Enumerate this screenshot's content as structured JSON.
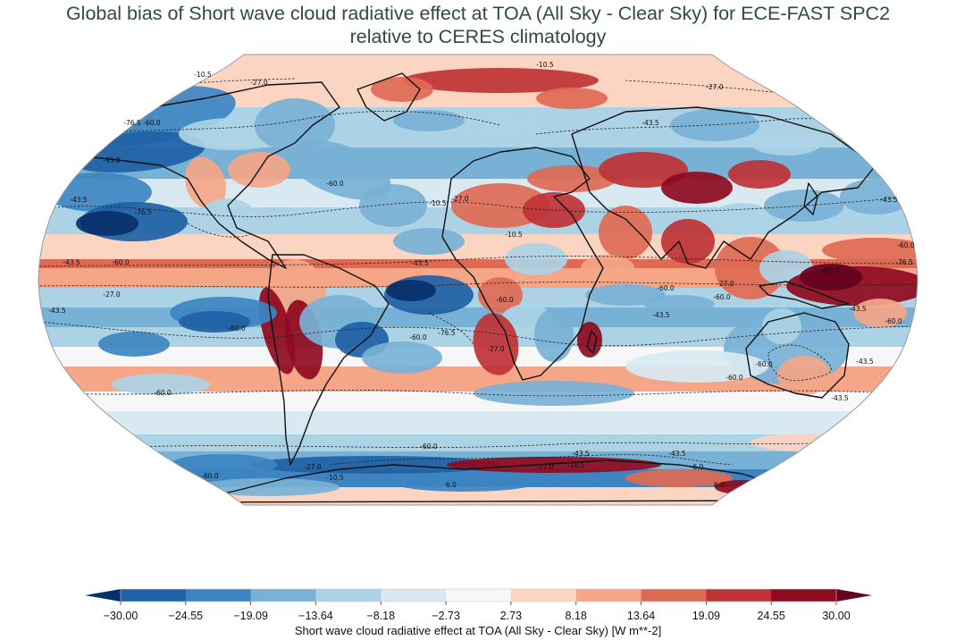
{
  "title": {
    "line1": "Global bias of Short wave cloud radiative effect at TOA (All Sky - Clear Sky) for ECE-FAST SPC2",
    "line2": "relative to CERES climatology"
  },
  "map": {
    "projection": "robinson",
    "contour_labels": [
      "-10.5",
      "-10.5",
      "-27.0",
      "-27.0",
      "-43.5",
      "-60.0",
      "-76.5",
      "-93.0",
      "-43.5",
      "-76.5",
      "-60.0",
      "-43.5",
      "-43.5",
      "-27.0",
      "-10.5",
      "-27.0",
      "-10.5",
      "-60.0",
      "-76.5",
      "-60.0",
      "-43.5",
      "-60.0",
      "-43.5",
      "-60.0",
      "-76.5",
      "-60.0",
      "-27.0",
      "-60.0",
      "-60.0",
      "-43.5",
      "-60.0",
      "-43.5",
      "-60.0",
      "-27.0",
      "-43.5",
      "-60.0",
      "-60.0",
      "-60.0",
      "-43.5",
      "-60.0",
      "-27.0",
      "-43.5",
      "-43.5",
      "-27.0",
      "-10.5",
      "6.0",
      "-60.0",
      "-6.0",
      "-10.5",
      "6.0"
    ]
  },
  "colorbar": {
    "label": "Short wave cloud radiative effect at TOA (All Sky - Clear Sky) [W m**-2]",
    "ticks": [
      "−30.00",
      "−24.55",
      "−19.09",
      "−13.64",
      "−8.18",
      "−2.73",
      "2.73",
      "8.18",
      "13.64",
      "19.09",
      "24.55",
      "30.00"
    ],
    "colors": [
      "#08306b",
      "#1f61a5",
      "#3d85c2",
      "#78b1d6",
      "#acd2e6",
      "#d8e9f2",
      "#f7f7f7",
      "#fbd4c2",
      "#f4a687",
      "#de6a54",
      "#bf3235",
      "#8e0a1f",
      "#67001f"
    ],
    "extend": "both"
  }
}
